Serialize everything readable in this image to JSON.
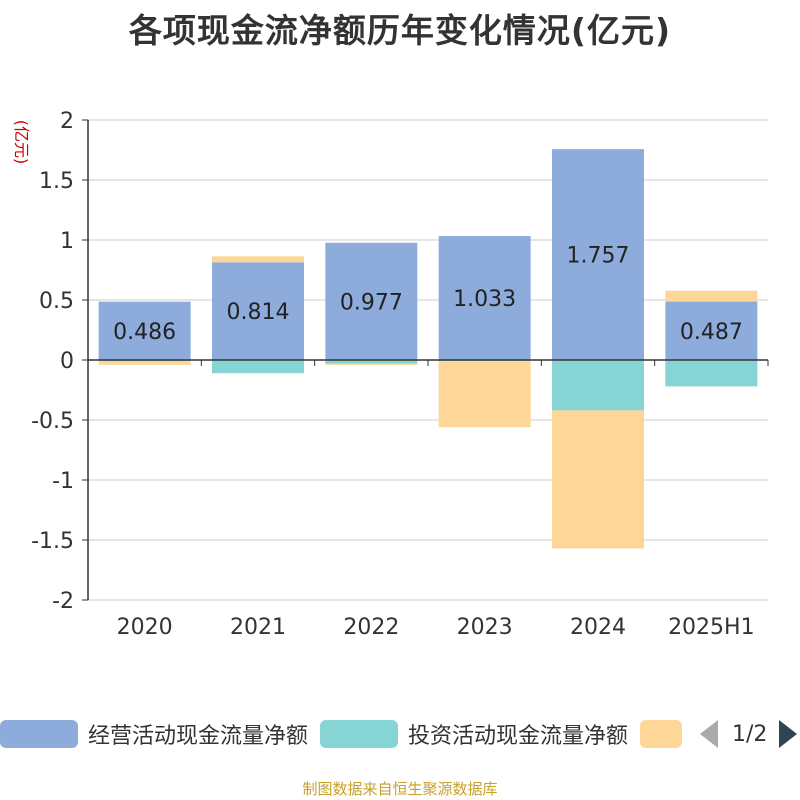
{
  "title": "各项现金流净额历年变化情况(亿元)",
  "source": "制图数据来自恒生聚源数据库",
  "colors": {
    "operating": "#8eacdb",
    "investing": "#87d4d4",
    "financing": "#fdd698",
    "axis": "#333333",
    "grid": "#cccccc",
    "unit": "#cc0000",
    "text": "#333333"
  },
  "chart_data": {
    "type": "bar",
    "stacked": true,
    "title": "各项现金流净额历年变化情况(亿元)",
    "ylabel": "(亿元)",
    "xlabel": "",
    "ylim": [
      -2,
      2
    ],
    "yticks": [
      2,
      1.5,
      1,
      0.5,
      0,
      -0.5,
      -1,
      -1.5,
      -2
    ],
    "ytick_labels": [
      "2",
      "1.5",
      "1",
      "0.5",
      "0",
      "-0.5",
      "-1",
      "-1.5",
      "-2"
    ],
    "grid": true,
    "legend_position": "bottom",
    "categories": [
      "2020",
      "2021",
      "2022",
      "2023",
      "2024",
      "2025H1"
    ],
    "series": [
      {
        "name": "经营活动现金流量净额",
        "color_key": "operating",
        "values": [
          0.486,
          0.814,
          0.977,
          1.033,
          1.757,
          0.487
        ],
        "labels": [
          "0.486",
          "0.814",
          "0.977",
          "1.033",
          "1.757",
          "0.487"
        ]
      },
      {
        "name": "投资活动现金流量净额",
        "color_key": "investing",
        "values": [
          -0.01,
          -0.11,
          -0.03,
          -0.01,
          -0.42,
          -0.22
        ]
      },
      {
        "name": "",
        "color_key": "financing",
        "values": [
          -0.03,
          0.05,
          -0.01,
          -0.55,
          -1.15,
          0.09
        ]
      }
    ]
  },
  "legend": {
    "items": [
      {
        "label": "经营活动现金流量净额",
        "color_key": "operating"
      },
      {
        "label": "投资活动现金流量净额",
        "color_key": "investing"
      },
      {
        "label": "",
        "color_key": "financing"
      }
    ],
    "page_text": "1/2"
  }
}
